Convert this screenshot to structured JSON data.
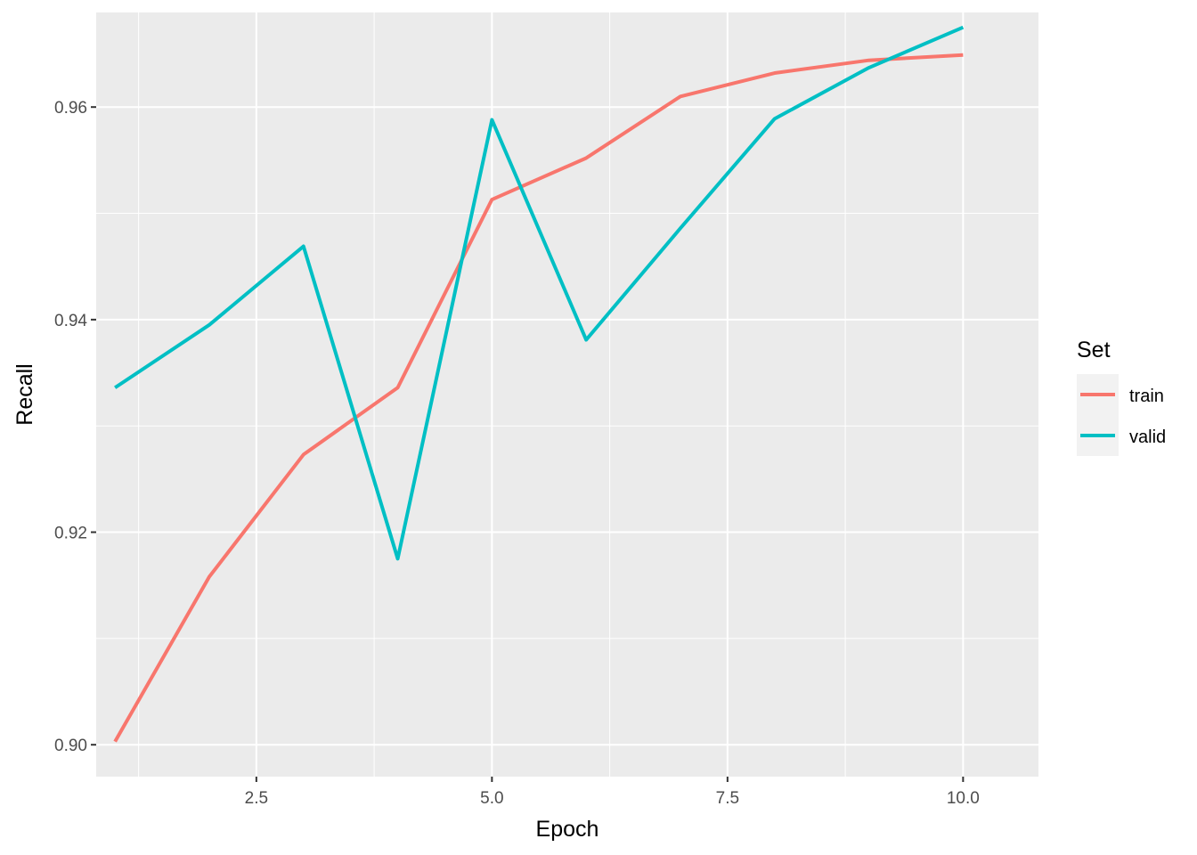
{
  "chart_data": {
    "type": "line",
    "xlabel": "Epoch",
    "ylabel": "Recall",
    "xlim": [
      0.8,
      10.8
    ],
    "ylim": [
      0.897,
      0.9689
    ],
    "xticks": [
      2.5,
      5.0,
      7.5,
      10.0
    ],
    "xtick_labels": [
      "2.5",
      "5.0",
      "7.5",
      "10.0"
    ],
    "yticks": [
      0.9,
      0.92,
      0.94,
      0.96
    ],
    "ytick_labels": [
      "0.90",
      "0.92",
      "0.94",
      "0.96"
    ],
    "grid": true,
    "legend": {
      "title": "Set",
      "placement": "right"
    },
    "x": [
      1,
      2,
      3,
      4,
      5,
      6,
      7,
      8,
      9,
      10
    ],
    "series": [
      {
        "name": "train",
        "color": "#F8766D",
        "values": [
          0.9003,
          0.9158,
          0.9273,
          0.9336,
          0.9513,
          0.9552,
          0.961,
          0.9632,
          0.9644,
          0.9649
        ]
      },
      {
        "name": "valid",
        "color": "#00BFC4",
        "values": [
          0.9336,
          0.9395,
          0.9469,
          0.9175,
          0.9588,
          0.9381,
          0.9486,
          0.9589,
          0.9637,
          0.9675
        ]
      }
    ]
  }
}
